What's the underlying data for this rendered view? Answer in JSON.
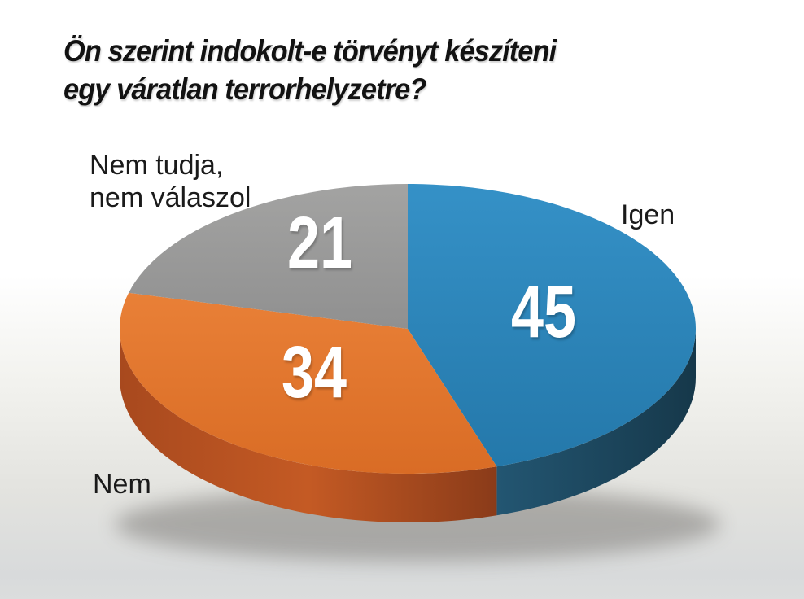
{
  "title": {
    "line1": "Ön szerint indokolt-e törvényt készíteni",
    "line2": "egy váratlan terrorhelyzetre?",
    "full": "Ön szerint indokolt-e törvényt készíteni egy váratlan terrorhelyzetre?"
  },
  "chart_data": {
    "type": "pie",
    "style": "3d",
    "title": "Ön szerint indokolt-e törvényt készíteni egy váratlan terrorhelyzetre?",
    "values_unit": "percent",
    "total": 100,
    "start_angle_deg": 0,
    "direction": "clockwise",
    "legend_position": "labels-around-slices",
    "slices": [
      {
        "label": "Igen",
        "label_lines": [
          "Igen"
        ],
        "value": 45,
        "color": "#2C86BE",
        "top_gradient": [
          "#3591C7",
          "#2478AA"
        ],
        "side_gradient": [
          "#235672",
          "#16384A"
        ]
      },
      {
        "label": "Nem",
        "label_lines": [
          "Nem"
        ],
        "value": 34,
        "color": "#E0752E",
        "top_gradient": [
          "#E98037",
          "#D96C25"
        ],
        "side_gradient": [
          "#A8491E",
          "#C45A24",
          "#8A3B19"
        ]
      },
      {
        "label": "Nem tudja, nem válaszol",
        "label_lines": [
          "Nem tudja,",
          "nem válaszol"
        ],
        "value": 21,
        "color": "#999998",
        "top_gradient": [
          "#A3A3A2",
          "#909090"
        ],
        "side_gradient": [
          "#7D7D7C",
          "#6E6E6D"
        ]
      }
    ],
    "background": {
      "top": "#FFFFFF",
      "bottom": "#D8DADB"
    },
    "text_colors": {
      "title": "#121212",
      "category_labels": "#1A1A1A",
      "value_labels": "#FFFFFF"
    }
  }
}
